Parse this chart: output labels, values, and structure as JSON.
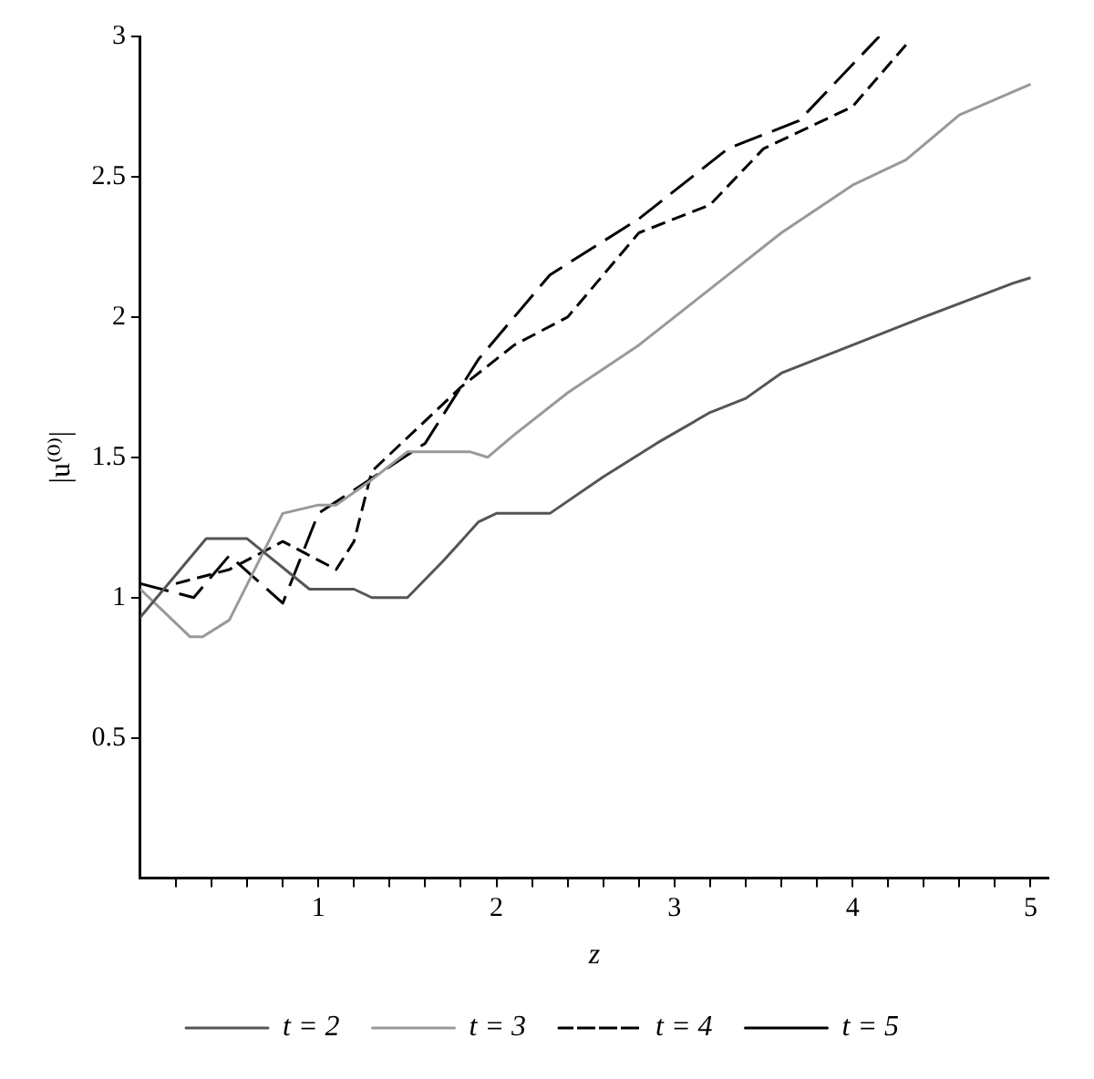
{
  "chart_data": {
    "type": "line",
    "xlabel": "z",
    "ylabel": "|u⁽⁰⁾|",
    "xlim": [
      0,
      5.1
    ],
    "ylim": [
      0,
      3
    ],
    "xticks": [
      {
        "value": 0.2,
        "label": null
      },
      {
        "value": 0.4,
        "label": null
      },
      {
        "value": 0.6,
        "label": null
      },
      {
        "value": 0.8,
        "label": null
      },
      1,
      {
        "value": 1.2,
        "label": null
      },
      {
        "value": 1.4,
        "label": null
      },
      {
        "value": 1.6,
        "label": null
      },
      {
        "value": 1.8,
        "label": null
      },
      2,
      {
        "value": 2.2,
        "label": null
      },
      {
        "value": 2.4,
        "label": null
      },
      {
        "value": 2.6,
        "label": null
      },
      {
        "value": 2.8,
        "label": null
      },
      3,
      {
        "value": 3.2,
        "label": null
      },
      {
        "value": 3.4,
        "label": null
      },
      {
        "value": 3.6,
        "label": null
      },
      {
        "value": 3.8,
        "label": null
      },
      4,
      {
        "value": 4.2,
        "label": null
      },
      {
        "value": 4.4,
        "label": null
      },
      {
        "value": 4.6,
        "label": null
      },
      {
        "value": 4.8,
        "label": null
      },
      5
    ],
    "yticks": [
      0.5,
      1,
      1.5,
      2,
      2.5,
      3
    ],
    "grid": false,
    "legend": "bottom",
    "marker": "none",
    "series": [
      {
        "name": "t = 2",
        "color": "#555555",
        "line_style": "solid",
        "x": [
          0,
          0.37,
          0.6,
          0.95,
          1.2,
          1.3,
          1.5,
          1.7,
          1.9,
          2.0,
          2.3,
          2.6,
          2.9,
          3.2,
          3.4,
          3.6,
          4.0,
          4.4,
          4.9,
          5.0
        ],
        "values": [
          0.93,
          1.21,
          1.21,
          1.03,
          1.03,
          1.0,
          1.0,
          1.13,
          1.27,
          1.3,
          1.3,
          1.43,
          1.55,
          1.66,
          1.71,
          1.8,
          1.9,
          2.0,
          2.12,
          2.14
        ]
      },
      {
        "name": "t = 3",
        "color": "#999999",
        "line_style": "solid",
        "x": [
          0,
          0.28,
          0.35,
          0.5,
          0.8,
          1.0,
          1.1,
          1.3,
          1.5,
          1.85,
          1.95,
          2.1,
          2.4,
          2.8,
          3.2,
          3.6,
          4.0,
          4.3,
          4.6,
          5.0
        ],
        "values": [
          1.03,
          0.86,
          0.86,
          0.92,
          1.3,
          1.33,
          1.33,
          1.42,
          1.52,
          1.52,
          1.5,
          1.58,
          1.73,
          1.9,
          2.1,
          2.3,
          2.47,
          2.56,
          2.72,
          2.83
        ]
      },
      {
        "name": "t = 4",
        "color": "#000000",
        "line_style": "dashed",
        "x": [
          0.2,
          0.5,
          0.8,
          1.1,
          1.2,
          1.3,
          1.8,
          2.1,
          2.4,
          2.8,
          3.2,
          3.5,
          4.0,
          4.3
        ],
        "values": [
          1.05,
          1.1,
          1.2,
          1.1,
          1.2,
          1.45,
          1.75,
          1.9,
          2.0,
          2.3,
          2.4,
          2.6,
          2.75,
          2.97
        ]
      },
      {
        "name": "t = 5",
        "color": "#000000",
        "line_style": "longdash",
        "x": [
          0,
          0.3,
          0.5,
          0.8,
          1.0,
          1.6,
          1.9,
          2.3,
          2.8,
          3.3,
          3.7,
          4.0,
          4.15
        ],
        "values": [
          1.05,
          1.0,
          1.15,
          0.98,
          1.3,
          1.55,
          1.85,
          2.15,
          2.35,
          2.6,
          2.7,
          2.9,
          3.0
        ]
      }
    ]
  }
}
